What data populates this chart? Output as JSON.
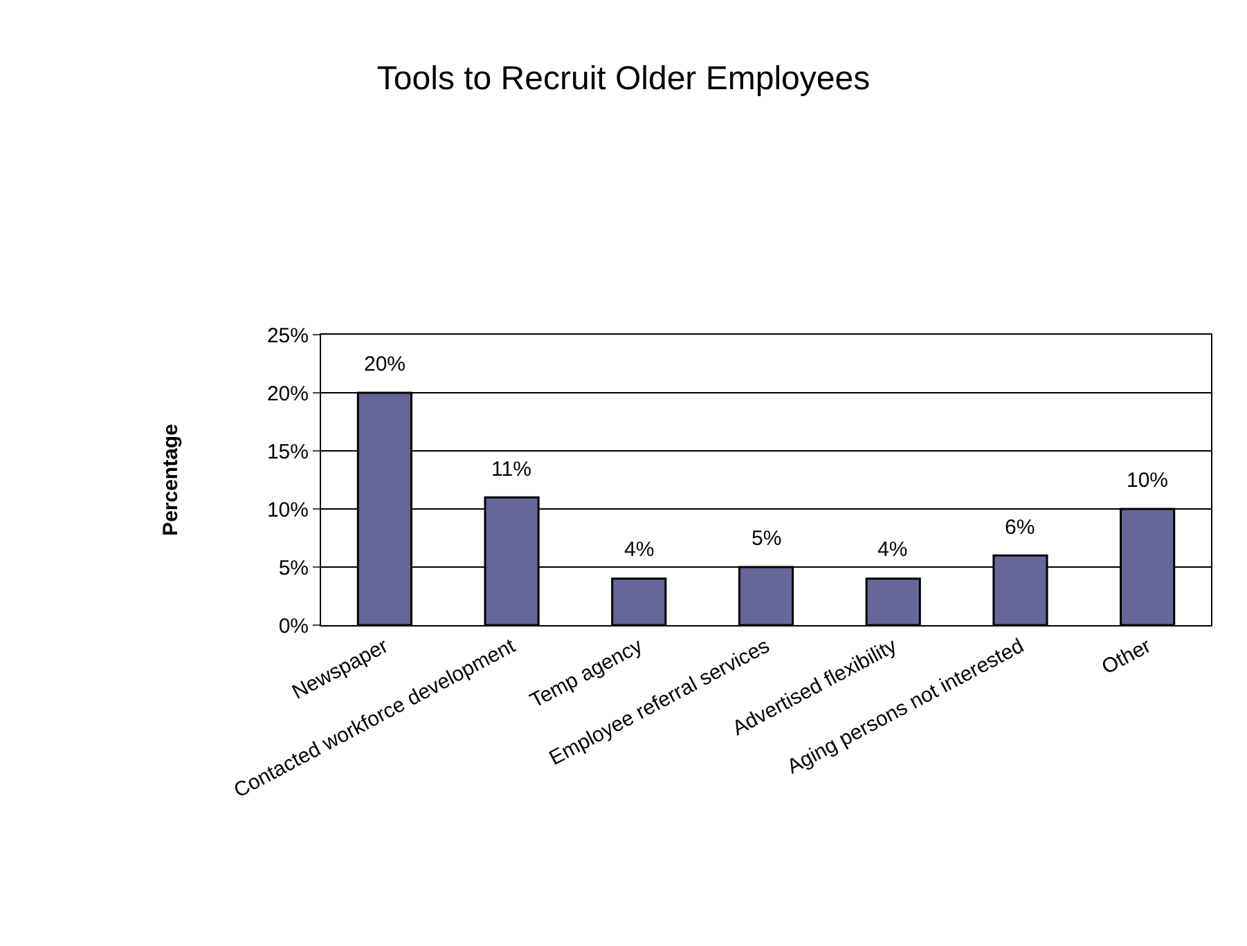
{
  "chart_data": {
    "type": "bar",
    "title": "Tools to Recruit Older Employees",
    "ylabel": "Percentage",
    "categories": [
      "Newspaper",
      "Contacted workforce development",
      "Temp agency",
      "Employee referral services",
      "Advertised flexibility",
      "Aging persons not interested",
      "Other"
    ],
    "values": [
      20,
      11,
      4,
      5,
      4,
      6,
      10
    ],
    "value_labels": [
      "20%",
      "11%",
      "4%",
      "5%",
      "4%",
      "6%",
      "10%"
    ],
    "color": "#666699",
    "ylim": [
      0,
      25
    ],
    "yticks": [
      {
        "value": 0,
        "label": "0%"
      },
      {
        "value": 5,
        "label": "5%"
      },
      {
        "value": 10,
        "label": "10%"
      },
      {
        "value": 15,
        "label": "15%"
      },
      {
        "value": 20,
        "label": "20%"
      },
      {
        "value": 25,
        "label": "25%"
      }
    ],
    "grid": "y"
  }
}
